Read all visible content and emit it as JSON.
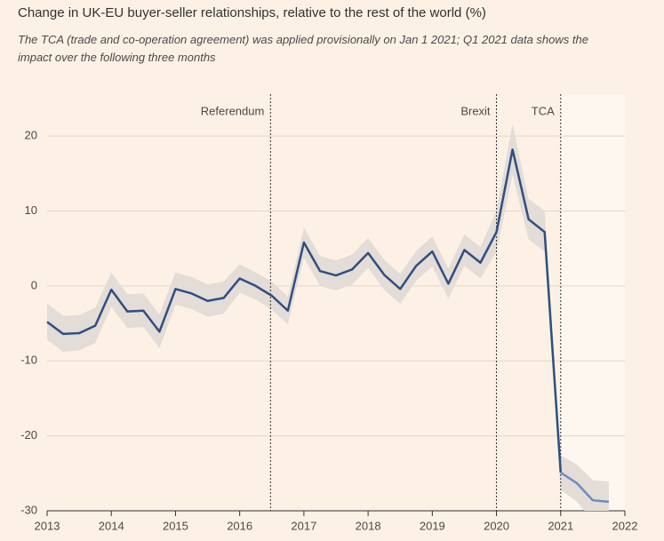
{
  "chart_data": {
    "type": "line",
    "title": "Change in UK-EU buyer-seller relationships, relative to the rest of the world (%)",
    "subtitle": [
      "The TCA (trade and co-operation agreement) was applied provisionally on Jan 1 2021; Q1 2021 data shows the",
      "impact over the following three months"
    ],
    "x": [
      2013,
      2013.25,
      2013.5,
      2013.75,
      2014,
      2014.25,
      2014.5,
      2014.75,
      2015,
      2015.25,
      2015.5,
      2015.75,
      2016,
      2016.25,
      2016.5,
      2016.75,
      2017,
      2017.25,
      2017.5,
      2017.75,
      2018,
      2018.25,
      2018.5,
      2018.75,
      2019,
      2019.25,
      2019.5,
      2019.75,
      2020,
      2020.25,
      2020.5,
      2020.75,
      2021,
      2021.25,
      2021.5,
      2021.75
    ],
    "series": [
      {
        "color": "#2e4f82",
        "values": [
          -4.8,
          -6.4,
          -6.3,
          -5.3,
          -0.5,
          -3.4,
          -3.3,
          -6.1,
          -0.4,
          -1.0,
          -2.0,
          -1.6,
          1.0,
          0.0,
          -1.3,
          -3.3,
          5.8,
          2.0,
          1.4,
          2.2,
          4.4,
          1.5,
          -0.4,
          2.7,
          4.6,
          0.3,
          4.8,
          3.1,
          7.2,
          18.2,
          8.9,
          7.2,
          -24.9,
          null,
          null,
          null
        ]
      },
      {
        "color": "#6a8ec0",
        "values": [
          null,
          null,
          null,
          null,
          null,
          null,
          null,
          null,
          null,
          null,
          null,
          null,
          null,
          null,
          null,
          null,
          null,
          null,
          null,
          null,
          null,
          null,
          null,
          null,
          null,
          null,
          null,
          null,
          null,
          null,
          null,
          null,
          -24.9,
          -26.3,
          -28.6,
          -28.8
        ]
      }
    ],
    "band": {
      "color": "#e4dcd6",
      "upper": [
        -2.3,
        -4.0,
        -3.9,
        -2.9,
        1.8,
        -1.1,
        -1.0,
        -3.8,
        1.8,
        1.2,
        0.2,
        0.6,
        2.9,
        1.8,
        0.6,
        -1.4,
        7.8,
        4.0,
        3.4,
        4.2,
        6.4,
        3.5,
        1.6,
        4.7,
        6.6,
        2.3,
        6.9,
        5.2,
        10.0,
        21.6,
        11.6,
        10.0,
        -22.6,
        -23.8,
        -25.9,
        -26.1
      ],
      "lower": [
        -7.2,
        -8.8,
        -8.6,
        -7.6,
        -2.8,
        -5.6,
        -5.5,
        -8.3,
        -2.5,
        -3.1,
        -4.1,
        -3.7,
        -0.9,
        -1.8,
        -3.2,
        -5.1,
        3.8,
        0.0,
        -0.6,
        0.2,
        2.4,
        -0.5,
        -2.4,
        0.7,
        2.6,
        -1.7,
        2.7,
        1.0,
        4.6,
        14.8,
        6.2,
        4.6,
        -27.2,
        -28.8,
        -31.3,
        -31.5
      ]
    },
    "events": [
      {
        "label": "Referendum",
        "x": 2016.48
      },
      {
        "label": "Brexit",
        "x": 2020.0
      },
      {
        "label": "TCA",
        "x": 2021.0
      }
    ],
    "xlim": [
      2013,
      2022
    ],
    "xticks": [
      2013,
      2014,
      2015,
      2016,
      2017,
      2018,
      2019,
      2020,
      2021,
      2022
    ],
    "ylim": [
      -30,
      25
    ],
    "yticks": [
      -30,
      -20,
      -10,
      0,
      10,
      20
    ],
    "grid": true
  }
}
